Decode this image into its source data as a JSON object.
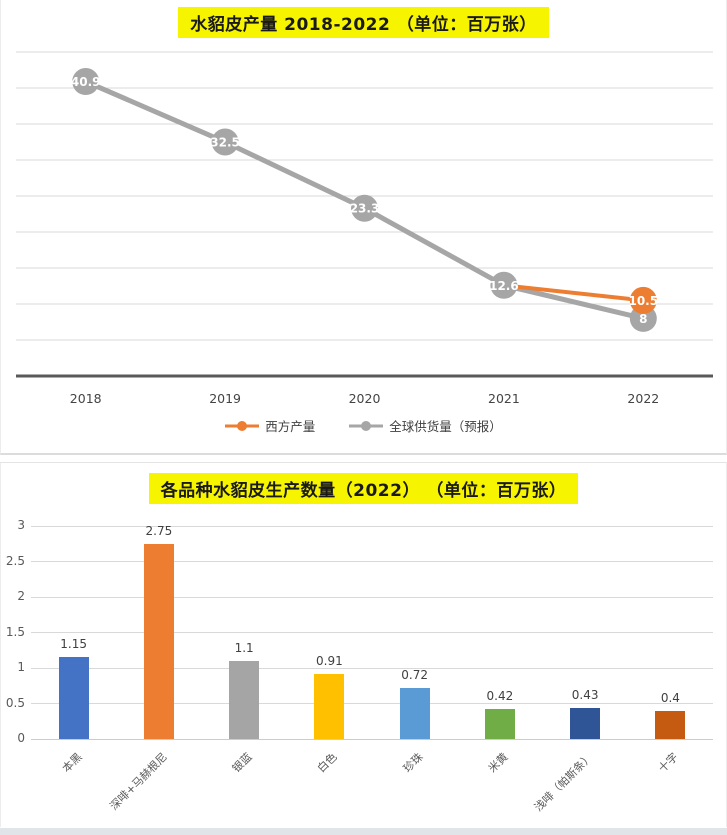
{
  "chart_data": [
    {
      "type": "line",
      "title": "水貂皮产量 2018-2022 （单位：百万张）",
      "x": [
        "2018",
        "2019",
        "2020",
        "2021",
        "2022"
      ],
      "series": [
        {
          "name": "西方产量",
          "color": "#ED7D31",
          "values": [
            null,
            null,
            null,
            12.6,
            10.5
          ],
          "marker_labels": [
            "",
            "",
            "",
            "",
            "10.5"
          ]
        },
        {
          "name": "全球供货量（预报）",
          "color": "#A6A6A6",
          "values": [
            40.9,
            32.5,
            23.3,
            12.6,
            8
          ],
          "marker_labels": [
            "40.9",
            "32.5",
            "23.3",
            "12.6",
            "8"
          ]
        }
      ],
      "ylim": [
        0,
        45
      ],
      "gridline_step": 5,
      "grid": true,
      "y_axis_labels_shown": false,
      "legend_position": "bottom",
      "colors": {
        "grid": "#d9d9d9",
        "axis": "#595959",
        "marker_text": "#ffffff",
        "title_highlight": "#f7f400"
      }
    },
    {
      "type": "bar",
      "title": "各品种水貂皮生产数量（2022） （单位：百万张）",
      "categories": [
        "本黑",
        "深啡+马赫根尼",
        "银蓝",
        "白色",
        "珍珠",
        "米黄",
        "浅啡（帕斯条）",
        "十字"
      ],
      "values": [
        1.15,
        2.75,
        1.1,
        0.91,
        0.72,
        0.42,
        0.43,
        0.4
      ],
      "value_labels": [
        "1.15",
        "2.75",
        "1.1",
        "0.91",
        "0.72",
        "0.42",
        "0.43",
        "0.4"
      ],
      "bar_colors": [
        "#4472C4",
        "#ED7D31",
        "#A5A5A5",
        "#FFC000",
        "#5B9BD5",
        "#70AD47",
        "#2F5597",
        "#C55A11"
      ],
      "ylim": [
        0,
        3
      ],
      "yticks": [
        0,
        0.5,
        1,
        1.5,
        2,
        2.5,
        3
      ],
      "ytick_labels": [
        "0",
        "0.5",
        "1",
        "1.5",
        "2",
        "2.5",
        "3"
      ],
      "grid": true,
      "legend_position": "none",
      "colors": {
        "grid": "#d9d9d9",
        "tick_text": "#595959",
        "value_text": "#404040",
        "title_highlight": "#f7f400"
      }
    }
  ]
}
